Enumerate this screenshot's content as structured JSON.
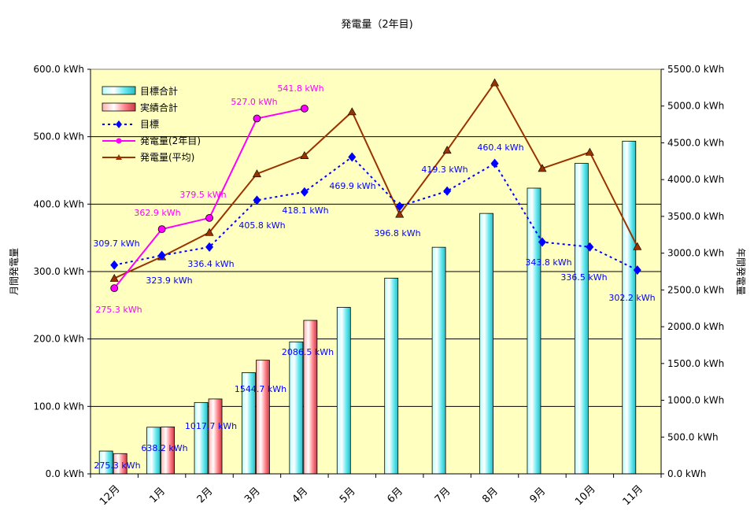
{
  "chart_data": {
    "type": "bar",
    "title": "発電量（2年目)",
    "ylabel": "月間発電量",
    "y2label": "年間発電量",
    "ylim": [
      0,
      600
    ],
    "y2lim": [
      0,
      5500
    ],
    "categories": [
      "12月",
      "1月",
      "2月",
      "3月",
      "4月",
      "5月",
      "6月",
      "7月",
      "8月",
      "9月",
      "10月",
      "11月"
    ],
    "yticks": [
      "0.0 kWh",
      "100.0 kWh",
      "200.0 kWh",
      "300.0 kWh",
      "400.0 kWh",
      "500.0 kWh",
      "600.0 kWh"
    ],
    "y2ticks": [
      "0.0 kWh",
      "500.0 kWh",
      "1000.0 kWh",
      "1500.0 kWh",
      "2000.0 kWh",
      "2500.0 kWh",
      "3000.0 kWh",
      "3500.0 kWh",
      "4000.0 kWh",
      "4500.0 kWh",
      "5000.0 kWh",
      "5500.0 kWh"
    ],
    "legend_position": "top-left",
    "series": [
      {
        "name": "目標合計",
        "type": "bar",
        "axis": "right",
        "color": "#7fffff",
        "values": [
          309.7,
          633.6,
          970.0,
          1375.8,
          1793.9,
          2263.8,
          2660.6,
          3079.9,
          3540.3,
          3884.1,
          4220.6,
          4522.8
        ]
      },
      {
        "name": "実績合計",
        "type": "bar",
        "axis": "right",
        "color": "#ff8080",
        "values": [
          275.3,
          638.2,
          1017.7,
          1544.7,
          2086.5,
          null,
          null,
          null,
          null,
          null,
          null,
          null
        ]
      },
      {
        "name": "目標",
        "type": "line",
        "axis": "left",
        "color": "#0000ff",
        "values": [
          309.7,
          323.9,
          336.4,
          405.8,
          418.1,
          469.9,
          396.8,
          419.3,
          460.4,
          343.8,
          336.5,
          302.2
        ]
      },
      {
        "name": "発電量(2年目)",
        "type": "line",
        "axis": "left",
        "color": "#ff00ff",
        "values": [
          275.3,
          362.9,
          379.5,
          527.0,
          541.8,
          null,
          null,
          null,
          null,
          null,
          null,
          null
        ]
      },
      {
        "name": "発電量(平均)",
        "type": "line",
        "axis": "left",
        "color": "#993300",
        "values": [
          290,
          322,
          358,
          445,
          472,
          537,
          385,
          480,
          580,
          453,
          477,
          337
        ]
      }
    ],
    "labels": {
      "target": [
        "309.7 kWh",
        "323.9 kWh",
        "336.4 kWh",
        "405.8 kWh",
        "418.1 kWh",
        "469.9 kWh",
        "396.8 kWh",
        "419.3 kWh",
        "460.4 kWh",
        "343.8 kWh",
        "336.5 kWh",
        "302.2 kWh"
      ],
      "actual": [
        "275.3 kWh",
        "362.9 kWh",
        "379.5 kWh",
        "527.0 kWh",
        "541.8 kWh"
      ],
      "cumulative": [
        "275.3 kWh",
        "638.2 kWh",
        "1017.7 kWh",
        "1544.7 kWh",
        "2086.5 kWh"
      ]
    }
  }
}
